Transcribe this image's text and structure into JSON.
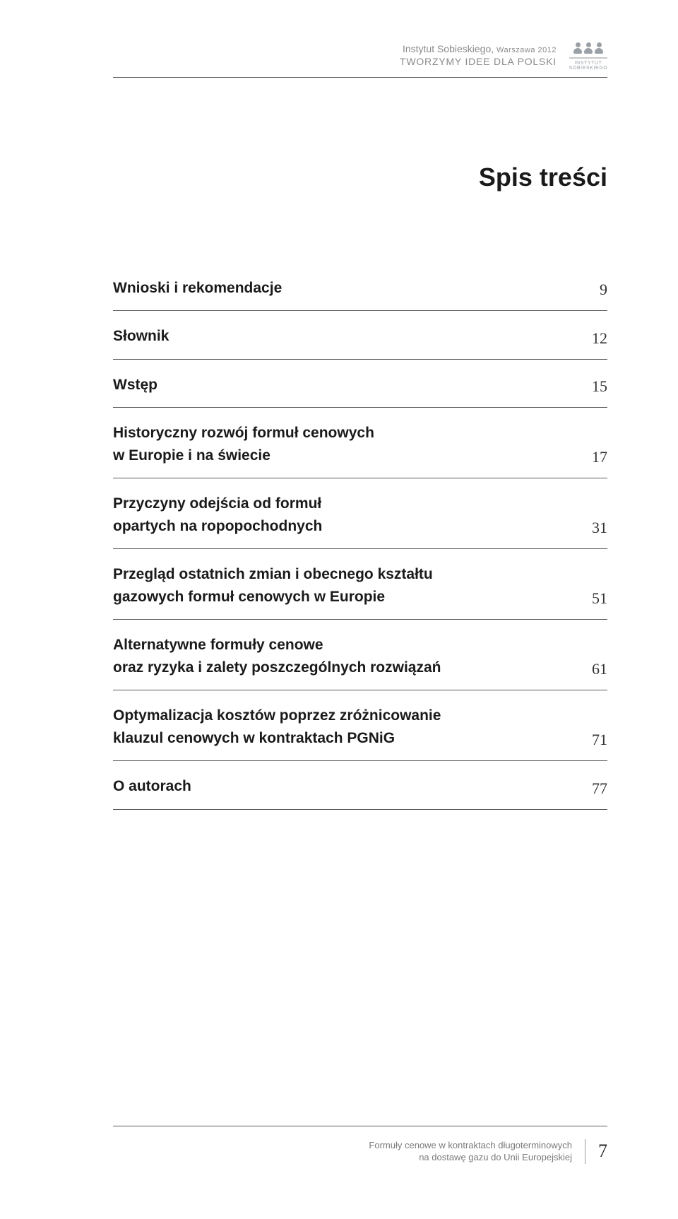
{
  "header": {
    "institute": "Instytut Sobieskiego,",
    "city_year": "Warszawa 2012",
    "tagline": "TWORZYMY IDEE DLA POLSKI",
    "logo_label_line1": "INSTYTUT",
    "logo_label_line2": "SOBIESKIEGO"
  },
  "title": "Spis treści",
  "toc": [
    {
      "label": "Wnioski i rekomendacje",
      "page": "9"
    },
    {
      "label": "Słownik",
      "page": "12"
    },
    {
      "label": "Wstęp",
      "page": "15"
    },
    {
      "label": "Historyczny rozwój formuł cenowych\nw Europie i na świecie",
      "page": "17"
    },
    {
      "label": "Przyczyny odejścia od formuł\nopartych na ropopochodnych",
      "page": "31"
    },
    {
      "label": "Przegląd ostatnich zmian i obecnego kształtu\ngazowych formuł cenowych w Europie",
      "page": "51"
    },
    {
      "label": "Alternatywne formuły cenowe\noraz ryzyka i zalety poszczególnych rozwiązań",
      "page": "61"
    },
    {
      "label": "Optymalizacja kosztów poprzez zróżnicowanie\nklauzul cenowych w kontraktach PGNiG",
      "page": "71"
    },
    {
      "label": "O autorach",
      "page": "77"
    }
  ],
  "footer": {
    "line1": "Formuły cenowe w kontraktach długoterminowych",
    "line2": "na dostawę gazu do Unii Europejskiej",
    "pagenum": "7"
  },
  "colors": {
    "text": "#1a1a1a",
    "muted": "#8a8a8a",
    "rule": "#5a5a5a",
    "background": "#ffffff"
  }
}
